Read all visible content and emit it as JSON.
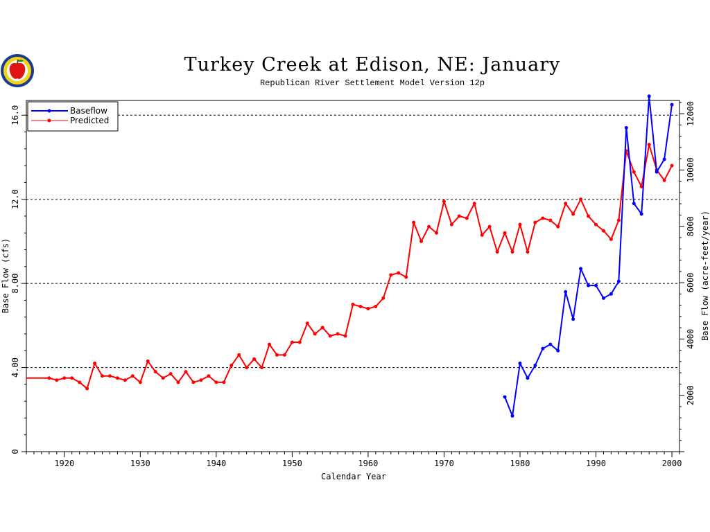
{
  "chart_data": {
    "type": "line",
    "title": "Turkey Creek at Edison, NE: January",
    "subtitle": "Republican River Settlement Model Version 12p",
    "xlabel": "Calendar Year",
    "ylabel": "Base Flow (cfs)",
    "y2label": "Base Flow (acre-feet/year)",
    "xlim": [
      1915,
      2001
    ],
    "ylim": [
      0,
      16.7
    ],
    "y2lim": [
      0,
      12470
    ],
    "x_ticks": [
      "1920",
      "1930",
      "1940",
      "1950",
      "1960",
      "1970",
      "1980",
      "1990",
      "2000"
    ],
    "y_ticks": [
      "0",
      "4.00",
      "8.00",
      "12.0",
      "16.0"
    ],
    "y2_ticks": [
      "2000",
      "4000",
      "6000",
      "8000",
      "10000",
      "12000"
    ],
    "gridlines_y": [
      4,
      8,
      12,
      16
    ],
    "legend_position": "top-left",
    "series": [
      {
        "name": "Baseflow",
        "color": "#0000ff",
        "x": [
          1978,
          1979,
          1980,
          1981,
          1982,
          1983,
          1984,
          1985,
          1986,
          1987,
          1988,
          1989,
          1990,
          1991,
          1992,
          1993,
          1994,
          1995,
          1996,
          1997,
          1998,
          1999,
          2000
        ],
        "y": [
          2.6,
          1.7,
          4.2,
          3.5,
          4.1,
          4.9,
          5.1,
          4.8,
          7.6,
          6.3,
          8.7,
          7.9,
          7.9,
          7.3,
          7.5,
          8.1,
          15.4,
          11.8,
          11.3,
          16.9,
          13.3,
          13.9,
          16.5
        ]
      },
      {
        "name": "Predicted",
        "color": "#ff0000",
        "x": [
          1918,
          1919,
          1920,
          1921,
          1922,
          1923,
          1924,
          1925,
          1926,
          1927,
          1928,
          1929,
          1930,
          1931,
          1932,
          1933,
          1934,
          1935,
          1936,
          1937,
          1938,
          1939,
          1940,
          1941,
          1942,
          1943,
          1944,
          1945,
          1946,
          1947,
          1948,
          1949,
          1950,
          1951,
          1952,
          1953,
          1954,
          1955,
          1956,
          1957,
          1958,
          1959,
          1960,
          1961,
          1962,
          1963,
          1964,
          1965,
          1966,
          1967,
          1968,
          1969,
          1970,
          1971,
          1972,
          1973,
          1974,
          1975,
          1976,
          1977,
          1978,
          1979,
          1980,
          1981,
          1982,
          1983,
          1984,
          1985,
          1986,
          1987,
          1988,
          1989,
          1990,
          1991,
          1992,
          1993,
          1994,
          1995,
          1996,
          1997,
          1998,
          1999,
          2000
        ],
        "y": [
          3.5,
          3.4,
          3.5,
          3.5,
          3.3,
          3.0,
          4.2,
          3.6,
          3.6,
          3.5,
          3.4,
          3.6,
          3.3,
          4.3,
          3.8,
          3.5,
          3.7,
          3.3,
          3.8,
          3.3,
          3.4,
          3.6,
          3.3,
          3.3,
          4.1,
          4.6,
          4.0,
          4.4,
          4.0,
          5.1,
          4.6,
          4.6,
          5.2,
          5.2,
          6.1,
          5.6,
          5.9,
          5.5,
          5.6,
          5.5,
          7.0,
          6.9,
          6.8,
          6.9,
          7.3,
          8.4,
          8.5,
          8.3,
          10.9,
          10.0,
          10.7,
          10.4,
          11.9,
          10.8,
          11.2,
          11.1,
          11.8,
          10.3,
          10.7,
          9.5,
          10.4,
          9.5,
          10.8,
          9.5,
          10.9,
          11.1,
          11.0,
          10.7,
          11.8,
          11.3,
          12.0,
          11.2,
          10.8,
          10.5,
          10.1,
          11.0,
          14.3,
          13.3,
          12.6,
          14.6,
          13.4,
          12.9,
          13.6
        ]
      }
    ]
  }
}
